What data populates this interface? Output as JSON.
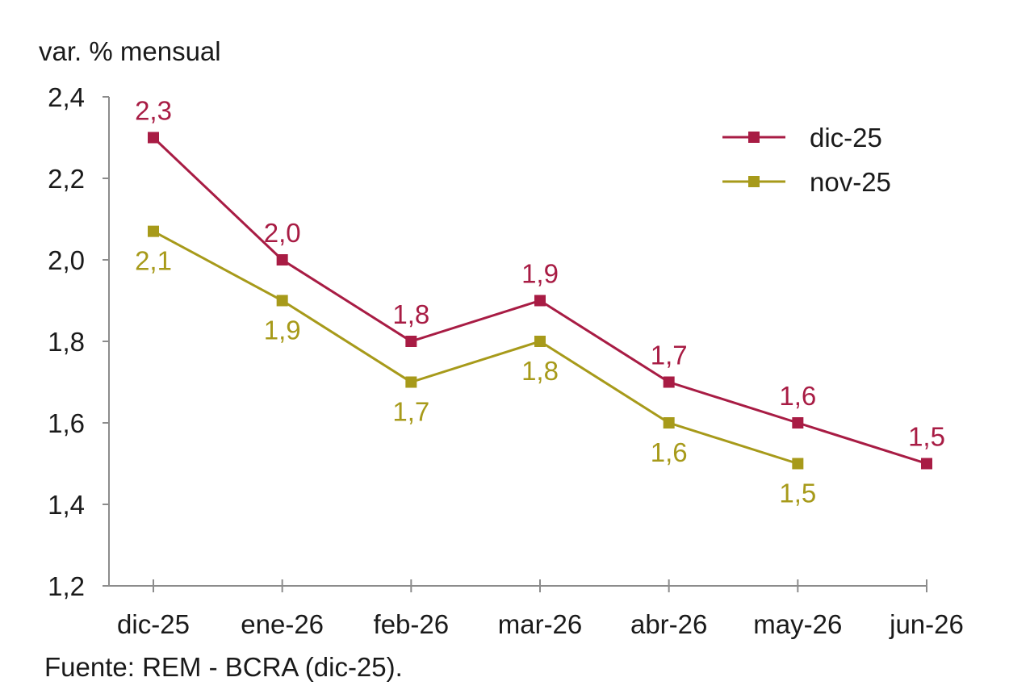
{
  "chart_data": {
    "type": "line",
    "unit_label": "var. % mensual",
    "source": "Fuente: REM - BCRA (dic-25).",
    "categories": [
      "dic-25",
      "ene-26",
      "feb-26",
      "mar-26",
      "abr-26",
      "may-26",
      "jun-26"
    ],
    "ylim": [
      1.2,
      2.4
    ],
    "yticks": [
      1.2,
      1.4,
      1.6,
      1.8,
      2.0,
      2.2,
      2.4
    ],
    "ytick_labels": [
      "1,2",
      "1,4",
      "1,6",
      "1,8",
      "2,0",
      "2,2",
      "2,4"
    ],
    "grid": false,
    "legend_position": "top-right",
    "series": [
      {
        "name": "dic-25",
        "color": "#a81c44",
        "values": [
          2.3,
          2.0,
          1.8,
          1.9,
          1.7,
          1.6,
          1.5
        ],
        "labels": [
          "2,3",
          "2,0",
          "1,8",
          "1,9",
          "1,7",
          "1,6",
          "1,5"
        ],
        "label_position": "above"
      },
      {
        "name": "nov-25",
        "color": "#a79a1a",
        "values": [
          2.07,
          1.9,
          1.7,
          1.8,
          1.6,
          1.5,
          null
        ],
        "labels": [
          "2,1",
          "1,9",
          "1,7",
          "1,8",
          "1,6",
          "1,5",
          null
        ],
        "label_position": "below"
      }
    ]
  }
}
